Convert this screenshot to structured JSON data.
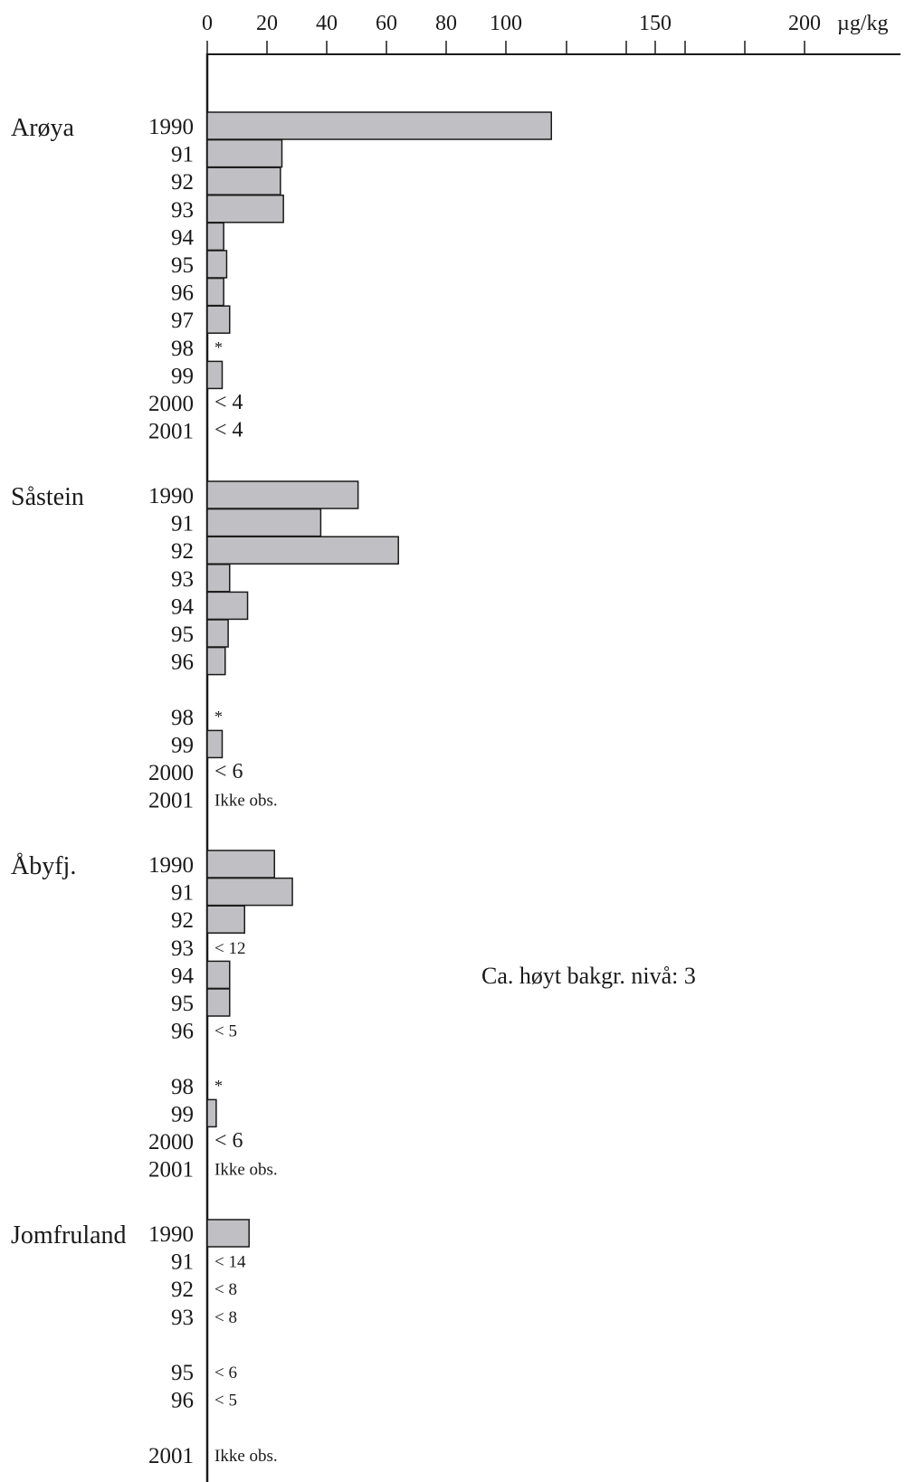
{
  "chart_data": {
    "type": "bar",
    "orientation": "horizontal",
    "unit_label": "µg/kg",
    "x_ticks": [
      {
        "value": 0,
        "label": "0"
      },
      {
        "value": 20,
        "label": "20"
      },
      {
        "value": 40,
        "label": "40"
      },
      {
        "value": 60,
        "label": "60"
      },
      {
        "value": 80,
        "label": "80"
      },
      {
        "value": 100,
        "label": "100"
      },
      {
        "value": 120,
        "label": ""
      },
      {
        "value": 140,
        "label": ""
      },
      {
        "value": 150,
        "label": "150"
      },
      {
        "value": 160,
        "label": ""
      },
      {
        "value": 180,
        "label": ""
      },
      {
        "value": 200,
        "label": "200"
      }
    ],
    "xlim": [
      0,
      230
    ],
    "annotation": "Ca. høyt bakgr. nivå: 3",
    "groups": [
      {
        "name": "Arøya",
        "rows": [
          {
            "year": "1990",
            "value": 115
          },
          {
            "year": "91",
            "value": 25
          },
          {
            "year": "92",
            "value": 24.5
          },
          {
            "year": "93",
            "value": 25.5
          },
          {
            "year": "94",
            "value": 5.5
          },
          {
            "year": "95",
            "value": 6.5
          },
          {
            "year": "96",
            "value": 5.5
          },
          {
            "year": "97",
            "value": 7.5
          },
          {
            "year": "98",
            "note": "*"
          },
          {
            "year": "99",
            "value": 5
          },
          {
            "year": "2000",
            "note": "< 4"
          },
          {
            "year": "2001",
            "note": "< 4"
          }
        ]
      },
      {
        "name": "Såstein",
        "rows": [
          {
            "year": "1990",
            "value": 50.5
          },
          {
            "year": "91",
            "value": 38
          },
          {
            "year": "92",
            "value": 64
          },
          {
            "year": "93",
            "value": 7.5
          },
          {
            "year": "94",
            "value": 13.5
          },
          {
            "year": "95",
            "value": 7
          },
          {
            "year": "96",
            "value": 6
          },
          {
            "gap": true
          },
          {
            "year": "98",
            "note": "*"
          },
          {
            "year": "99",
            "value": 5
          },
          {
            "year": "2000",
            "note": "< 6"
          },
          {
            "year": "2001",
            "note": "Ikke obs.",
            "small": true
          }
        ]
      },
      {
        "name": "Åbyfj.",
        "rows": [
          {
            "year": "1990",
            "value": 22.5
          },
          {
            "year": "91",
            "value": 28.5
          },
          {
            "year": "92",
            "value": 12.5
          },
          {
            "year": "93",
            "note": "< 12",
            "small": true
          },
          {
            "year": "94",
            "value": 7.5
          },
          {
            "year": "95",
            "value": 7.5
          },
          {
            "year": "96",
            "note": "< 5",
            "small": true
          },
          {
            "gap": true
          },
          {
            "year": "98",
            "note": "*"
          },
          {
            "year": "99",
            "value": 3
          },
          {
            "year": "2000",
            "note": "< 6"
          },
          {
            "year": "2001",
            "note": "Ikke obs.",
            "small": true
          }
        ]
      },
      {
        "name": "Jomfruland",
        "rows": [
          {
            "year": "1990",
            "value": 14
          },
          {
            "year": "91",
            "note": "< 14",
            "small": true
          },
          {
            "year": "92",
            "note": "< 8",
            "small": true
          },
          {
            "year": "93",
            "note": "< 8",
            "small": true
          },
          {
            "gap": true
          },
          {
            "year": "95",
            "note": "< 6",
            "small": true
          },
          {
            "year": "96",
            "note": "< 5",
            "small": true
          },
          {
            "gap": true
          },
          {
            "year": "2001",
            "note": "Ikke obs.",
            "small": true
          }
        ]
      }
    ],
    "colors": {
      "bar_fill": "#c0c0c4",
      "bar_stroke": "#1a1a1a",
      "axis": "#1a1a1a"
    }
  }
}
